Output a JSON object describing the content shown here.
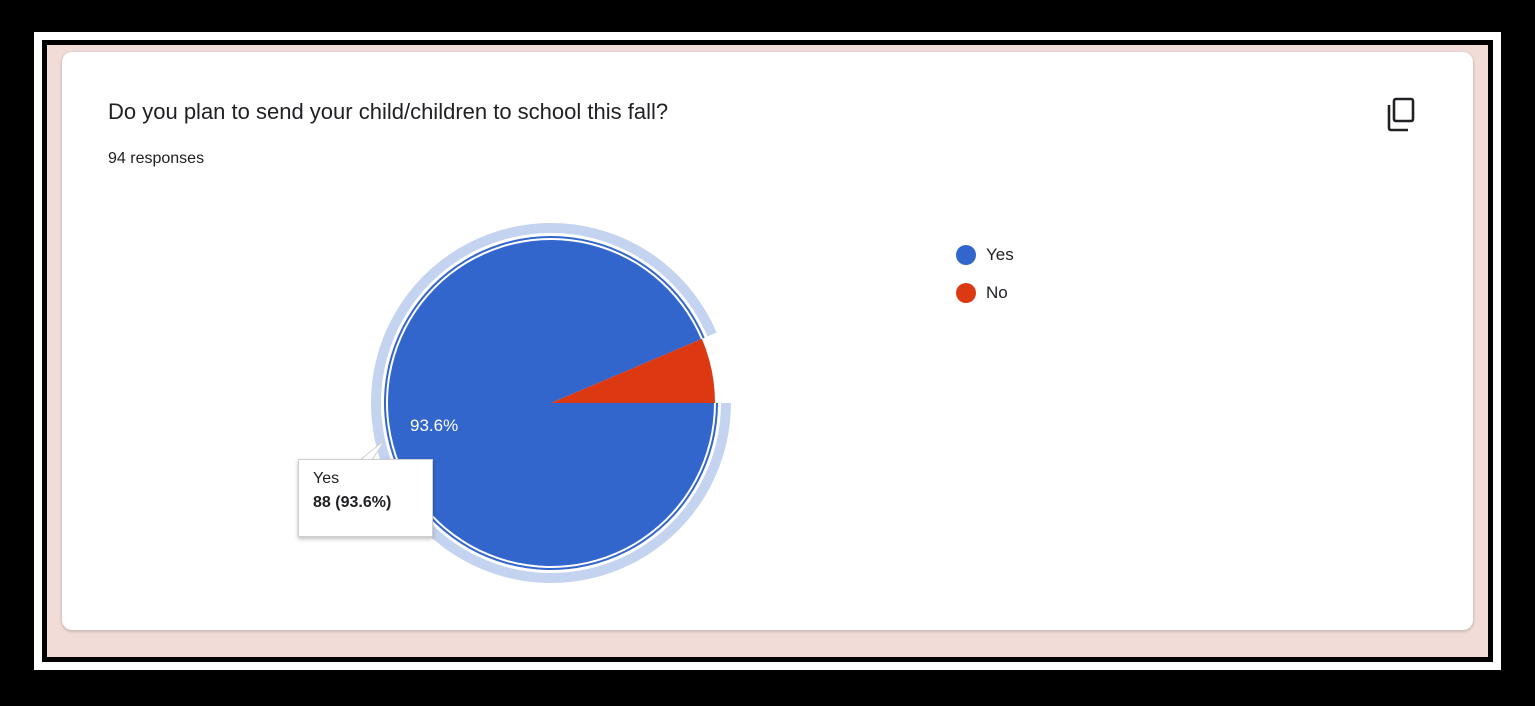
{
  "question": {
    "title": "Do you plan to send your child/children to school this fall?",
    "responses_label": "94 responses"
  },
  "icons": {
    "copy": "copy-icon"
  },
  "colors": {
    "yes": "#3366cc",
    "no": "#dc3912",
    "highlight": "#c4d3f0",
    "card_bg": "#ffffff",
    "page_bg": "#f1dcd8"
  },
  "chart_data": {
    "type": "pie",
    "title": "Do you plan to send your child/children to school this fall?",
    "total_responses": 94,
    "slices": [
      {
        "label": "Yes",
        "count": 88,
        "percent": 93.6,
        "color": "#3366cc",
        "slice_label": "93.6%"
      },
      {
        "label": "No",
        "count": 6,
        "percent": 6.4,
        "color": "#dc3912"
      }
    ],
    "legend_position": "right",
    "highlighted": "Yes"
  },
  "legend": [
    {
      "label": "Yes",
      "color": "#3366cc"
    },
    {
      "label": "No",
      "color": "#dc3912"
    }
  ],
  "tooltip": {
    "label": "Yes",
    "value": "88 (93.6%)"
  }
}
